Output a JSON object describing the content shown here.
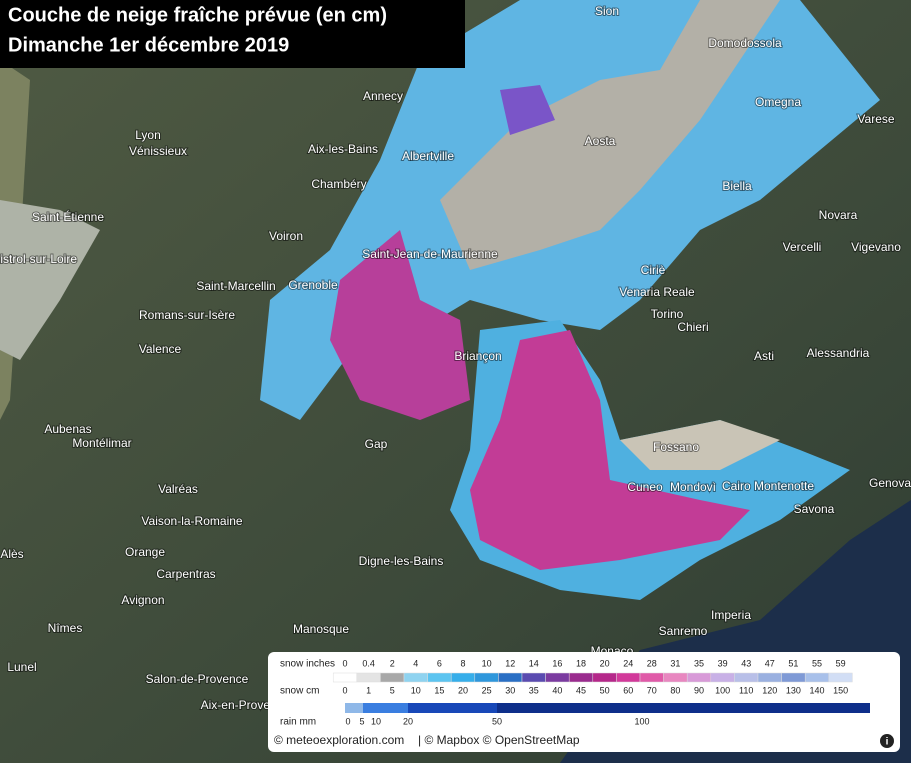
{
  "title": {
    "line1": "Couche de neige fraîche prévue (en cm)",
    "line2": "Dimanche 1er décembre 2019"
  },
  "places": [
    "Sion",
    "Domodossola",
    "Annecy",
    "Lyon",
    "Vénissieux",
    "Omegna",
    "Varese",
    "Aix-les-Bains",
    "Albertville",
    "Aosta",
    "Chambéry",
    "Biella",
    "Saint-Étienne",
    "Novara",
    "Voiron",
    "Saint-Jean-de-Maurienne",
    "Vercelli",
    "Vigevano",
    "Monistrol-sur-Loire",
    "Ciriè",
    "Saint-Marcellin",
    "Grenoble",
    "Venaria Reale",
    "Torino",
    "Romans-sur-Isère",
    "Chieri",
    "Valence",
    "Briançon",
    "Asti",
    "Alessandria",
    "Aubenas",
    "Montélimar",
    "Gap",
    "Fossano",
    "Cuneo",
    "Mondovì",
    "Cairo Montenotte",
    "Genova",
    "Valréas",
    "Savona",
    "Vaison-la-Romaine",
    "Digne-les-Bains",
    "Alès",
    "Orange",
    "Carpentras",
    "Avignon",
    "Nîmes",
    "Manosque",
    "Imperia",
    "Monaco",
    "Sanremo",
    "Salon-de-Provence",
    "Lunel",
    "Aix-en-Provence"
  ],
  "legend": {
    "snow_inches": {
      "label": "snow inches",
      "values": [
        0,
        0.4,
        2,
        4,
        6,
        8,
        10,
        12,
        14,
        16,
        18,
        20,
        24,
        28,
        31,
        35,
        39,
        43,
        47,
        51,
        55,
        59
      ]
    },
    "snow_cm": {
      "label": "snow cm",
      "values": [
        0,
        1,
        5,
        10,
        15,
        20,
        25,
        30,
        35,
        40,
        45,
        50,
        60,
        70,
        80,
        90,
        100,
        110,
        120,
        130,
        140,
        150
      ]
    },
    "rain_mm": {
      "label": "rain mm",
      "values": [
        0,
        5,
        10,
        20,
        50,
        100
      ]
    }
  },
  "attribution": {
    "site": "© meteoexploration.com",
    "maps": "| © Mapbox © OpenStreetMap",
    "info": "i"
  }
}
